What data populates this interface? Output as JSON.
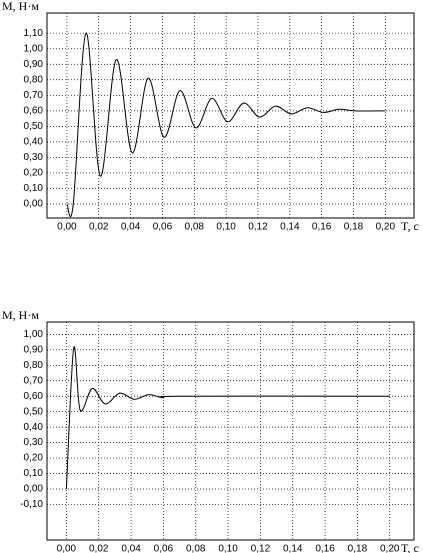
{
  "chart_data": [
    {
      "type": "line",
      "y_label": "M, Н·м",
      "x_label": "T, c",
      "grid": true,
      "color": "#000000",
      "x": [
        0,
        0.004,
        0.012,
        0.021,
        0.031,
        0.041,
        0.051,
        0.061,
        0.071,
        0.081,
        0.091,
        0.101,
        0.111,
        0.121,
        0.131,
        0.141,
        0.151,
        0.161,
        0.171,
        0.181,
        0.2
      ],
      "values": [
        0,
        0,
        1.1,
        0.18,
        0.93,
        0.33,
        0.81,
        0.43,
        0.73,
        0.49,
        0.68,
        0.53,
        0.65,
        0.56,
        0.63,
        0.58,
        0.62,
        0.59,
        0.61,
        0.6,
        0.6
      ],
      "xlim": [
        -0.0125,
        0.218
      ],
      "ylim": [
        -0.09,
        1.23
      ],
      "xticks": [
        {
          "value": 0,
          "label": "0,00"
        },
        {
          "value": 0.02,
          "label": "0,02"
        },
        {
          "value": 0.04,
          "label": "0,04"
        },
        {
          "value": 0.06,
          "label": "0,06"
        },
        {
          "value": 0.08,
          "label": "0,08"
        },
        {
          "value": 0.1,
          "label": "0,10"
        },
        {
          "value": 0.12,
          "label": "0,12"
        },
        {
          "value": 0.14,
          "label": "0,14"
        },
        {
          "value": 0.16,
          "label": "0,16"
        },
        {
          "value": 0.18,
          "label": "0,18"
        },
        {
          "value": 0.2,
          "label": "0,20"
        }
      ],
      "yticks": [
        {
          "value": 0,
          "label": "0,00"
        },
        {
          "value": 0.1,
          "label": "0,10"
        },
        {
          "value": 0.2,
          "label": "0,20"
        },
        {
          "value": 0.3,
          "label": "0,30"
        },
        {
          "value": 0.4,
          "label": "0,40"
        },
        {
          "value": 0.5,
          "label": "0,50"
        },
        {
          "value": 0.6,
          "label": "0,60"
        },
        {
          "value": 0.7,
          "label": "0,70"
        },
        {
          "value": 0.8,
          "label": "0,80"
        },
        {
          "value": 0.9,
          "label": "0,90"
        },
        {
          "value": 1.0,
          "label": "1,00"
        },
        {
          "value": 1.1,
          "label": "1,10"
        }
      ]
    },
    {
      "type": "line",
      "y_label": "M, Н·м",
      "x_label": "T, c",
      "grid": true,
      "color": "#000000",
      "x": [
        0,
        0.0045,
        0.0085,
        0.016,
        0.024,
        0.033,
        0.042,
        0.051,
        0.06,
        0.07,
        0.2
      ],
      "values": [
        0,
        0.91,
        0.51,
        0.65,
        0.55,
        0.62,
        0.58,
        0.61,
        0.59,
        0.6,
        0.6
      ],
      "xlim": [
        -0.012,
        0.215
      ],
      "ylim": [
        -0.33,
        1.08
      ],
      "xticks": [
        {
          "value": 0,
          "label": "0,00"
        },
        {
          "value": 0.02,
          "label": "0,02"
        },
        {
          "value": 0.04,
          "label": "0,04"
        },
        {
          "value": 0.06,
          "label": "0,06"
        },
        {
          "value": 0.08,
          "label": "0,08"
        },
        {
          "value": 0.1,
          "label": "0,10"
        },
        {
          "value": 0.12,
          "label": "0,12"
        },
        {
          "value": 0.14,
          "label": "0,14"
        },
        {
          "value": 0.16,
          "label": "0,16"
        },
        {
          "value": 0.18,
          "label": "0,18"
        },
        {
          "value": 0.2,
          "label": "0,20"
        }
      ],
      "yticks": [
        {
          "value": -0.1,
          "label": "-0,10"
        },
        {
          "value": 0,
          "label": "0,00"
        },
        {
          "value": 0.1,
          "label": "0,10"
        },
        {
          "value": 0.2,
          "label": "0,20"
        },
        {
          "value": 0.3,
          "label": "0,30"
        },
        {
          "value": 0.4,
          "label": "0,40"
        },
        {
          "value": 0.5,
          "label": "0,50"
        },
        {
          "value": 0.6,
          "label": "0,60"
        },
        {
          "value": 0.7,
          "label": "0,70"
        },
        {
          "value": 0.8,
          "label": "0,80"
        },
        {
          "value": 0.9,
          "label": "0,90"
        },
        {
          "value": 1.0,
          "label": "1,00"
        }
      ]
    }
  ]
}
